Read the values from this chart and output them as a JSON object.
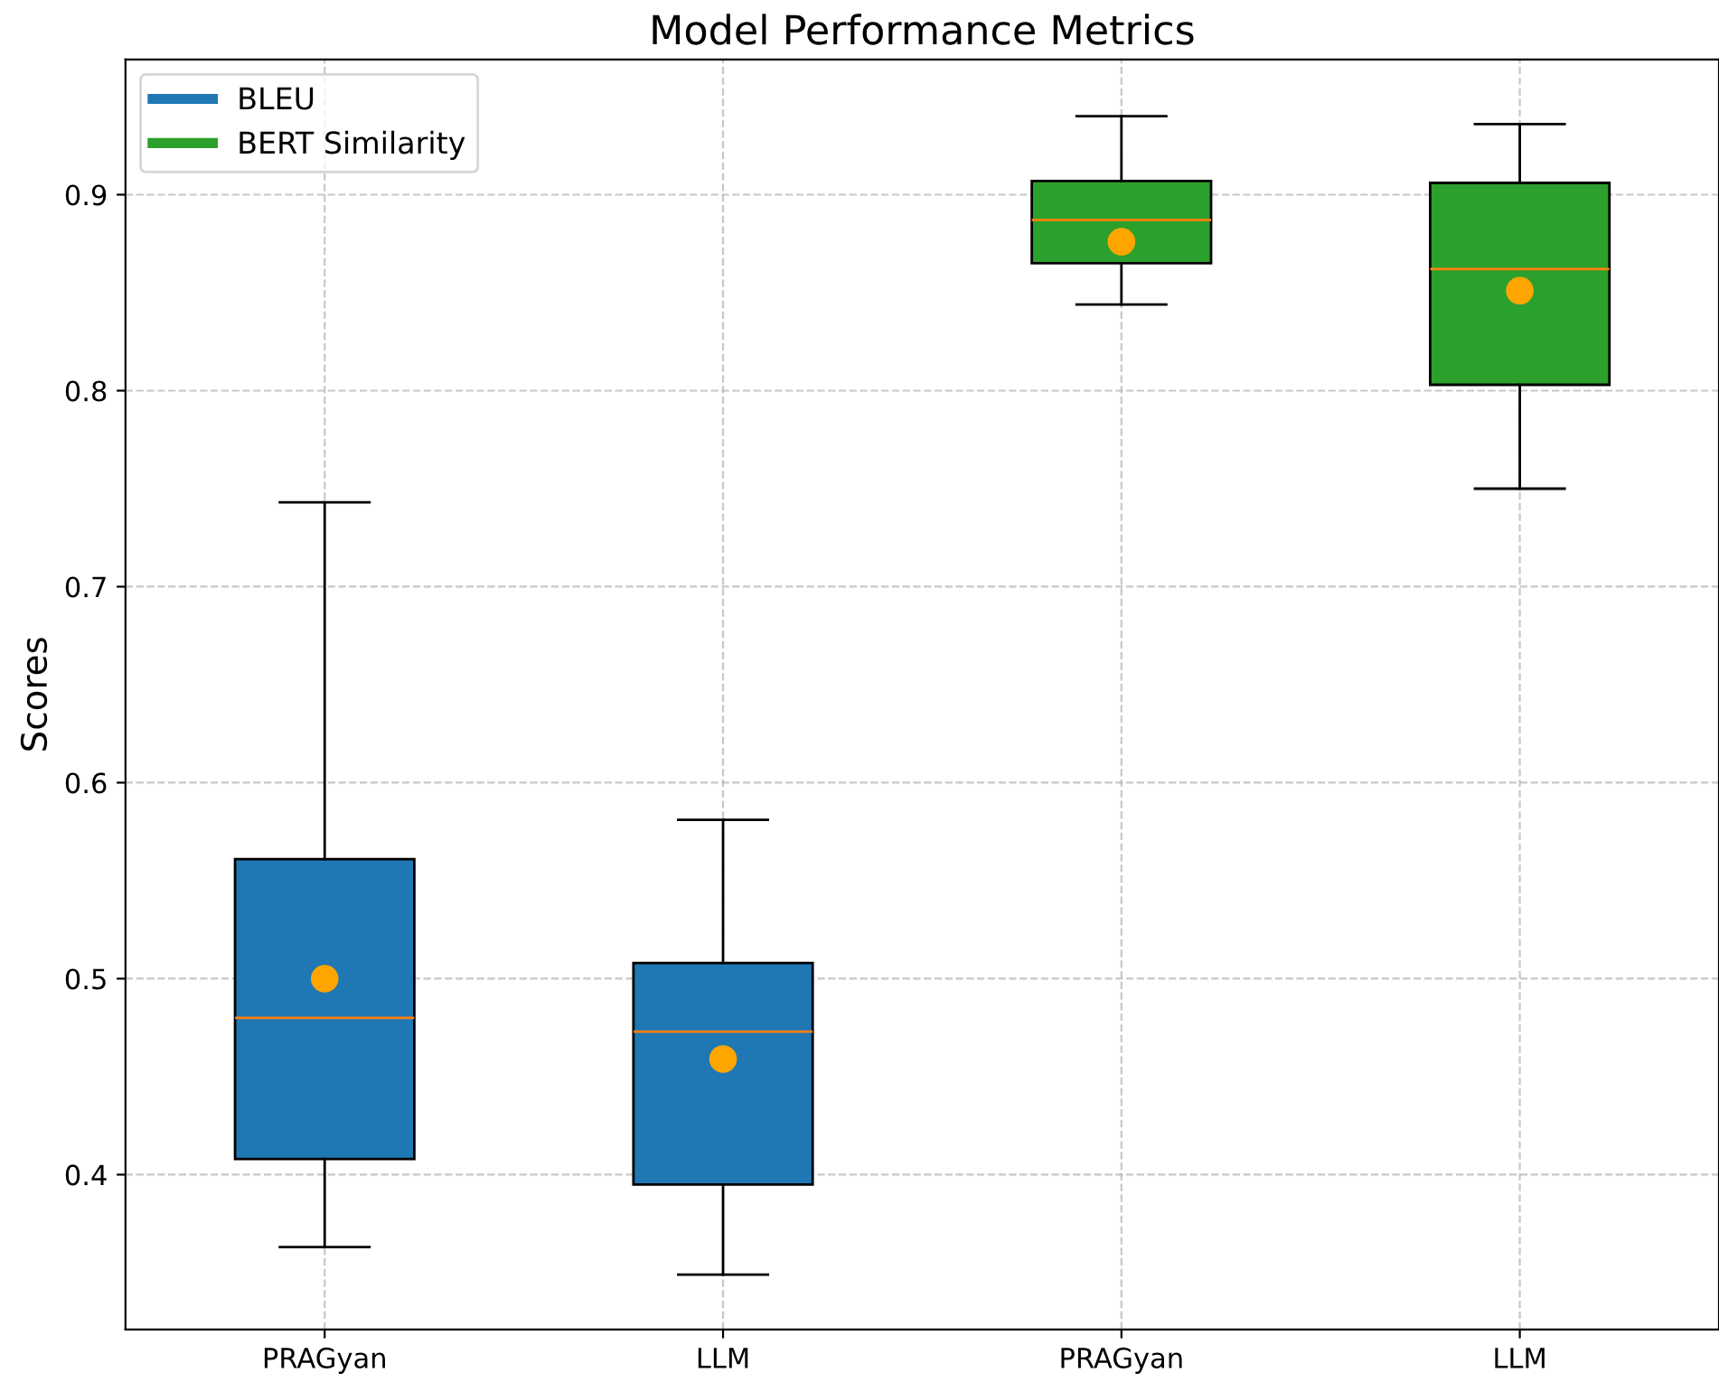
{
  "chart_data": {
    "type": "box",
    "title": "Model Performance Metrics",
    "ylabel": "Scores",
    "categories": [
      "PRAGyan",
      "LLM",
      "PRAGyan",
      "LLM"
    ],
    "series": [
      {
        "name": "BLEU",
        "color": "#1f77b4",
        "boxes": [
          {
            "low": 0.363,
            "q1": 0.408,
            "median": 0.48,
            "q3": 0.561,
            "high": 0.743,
            "mean": 0.5
          },
          {
            "low": 0.349,
            "q1": 0.395,
            "median": 0.473,
            "q3": 0.508,
            "high": 0.581,
            "mean": 0.459
          },
          null,
          null
        ]
      },
      {
        "name": "BERT Similarity",
        "color": "#2ca02c",
        "boxes": [
          null,
          null,
          {
            "low": 0.844,
            "q1": 0.865,
            "median": 0.887,
            "q3": 0.907,
            "high": 0.94,
            "mean": 0.876
          },
          {
            "low": 0.75,
            "q1": 0.803,
            "median": 0.862,
            "q3": 0.906,
            "high": 0.936,
            "mean": 0.851
          }
        ]
      }
    ],
    "ylim": [
      0.321,
      0.969
    ],
    "yticks": [
      0.4,
      0.5,
      0.6,
      0.7,
      0.8,
      0.9
    ],
    "grid": true,
    "legend": "top left"
  }
}
